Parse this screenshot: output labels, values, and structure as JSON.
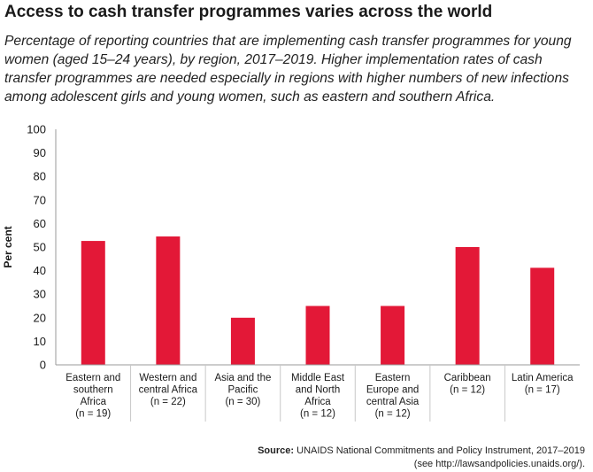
{
  "title": "Access to cash transfer programmes varies across the world",
  "subtitle": "Percentage of reporting countries that are implementing cash transfer programmes for young women (aged 15–24 years), by region, 2017–2019. Higher implementation rates of cash transfer programmes are needed especially in regions with higher numbers of new infections among adolescent girls and young women, such as eastern and southern Africa.",
  "source": {
    "label": "Source:",
    "text": "UNAIDS National Commitments and Policy Instrument, 2017–2019",
    "note": "(see http://lawsandpolicies.unaids.org/)."
  },
  "colors": {
    "bar": "#e31837",
    "axis": "#9a9a9a",
    "text": "#1a1a1a"
  },
  "chart_data": {
    "type": "bar",
    "ylabel": "Per cent",
    "xlabel": "",
    "ylim": [
      0,
      100
    ],
    "yticks": [
      0,
      10,
      20,
      30,
      40,
      50,
      60,
      70,
      80,
      90,
      100
    ],
    "grid": false,
    "categories": [
      "Eastern and southern Africa (n = 19)",
      "Western and central Africa (n = 22)",
      "Asia and the Pacific (n = 30)",
      "Middle East and North Africa (n = 12)",
      "Eastern Europe and central Asia (n = 12)",
      "Caribbean (n = 12)",
      "Latin America (n = 17)"
    ],
    "category_lines": [
      [
        "Eastern and",
        "southern",
        "Africa",
        "(n = 19)"
      ],
      [
        "Western and",
        "central Africa",
        "(n = 22)"
      ],
      [
        "Asia and the",
        "Pacific",
        "(n = 30)"
      ],
      [
        "Middle East",
        "and North",
        "Africa",
        "(n = 12)"
      ],
      [
        "Eastern",
        "Europe and",
        "central Asia",
        "(n = 12)"
      ],
      [
        "Caribbean",
        "(n = 12)"
      ],
      [
        "Latin America",
        "(n = 17)"
      ]
    ],
    "values": [
      52.6,
      54.5,
      20.0,
      25.0,
      25.0,
      50.0,
      41.2
    ]
  }
}
